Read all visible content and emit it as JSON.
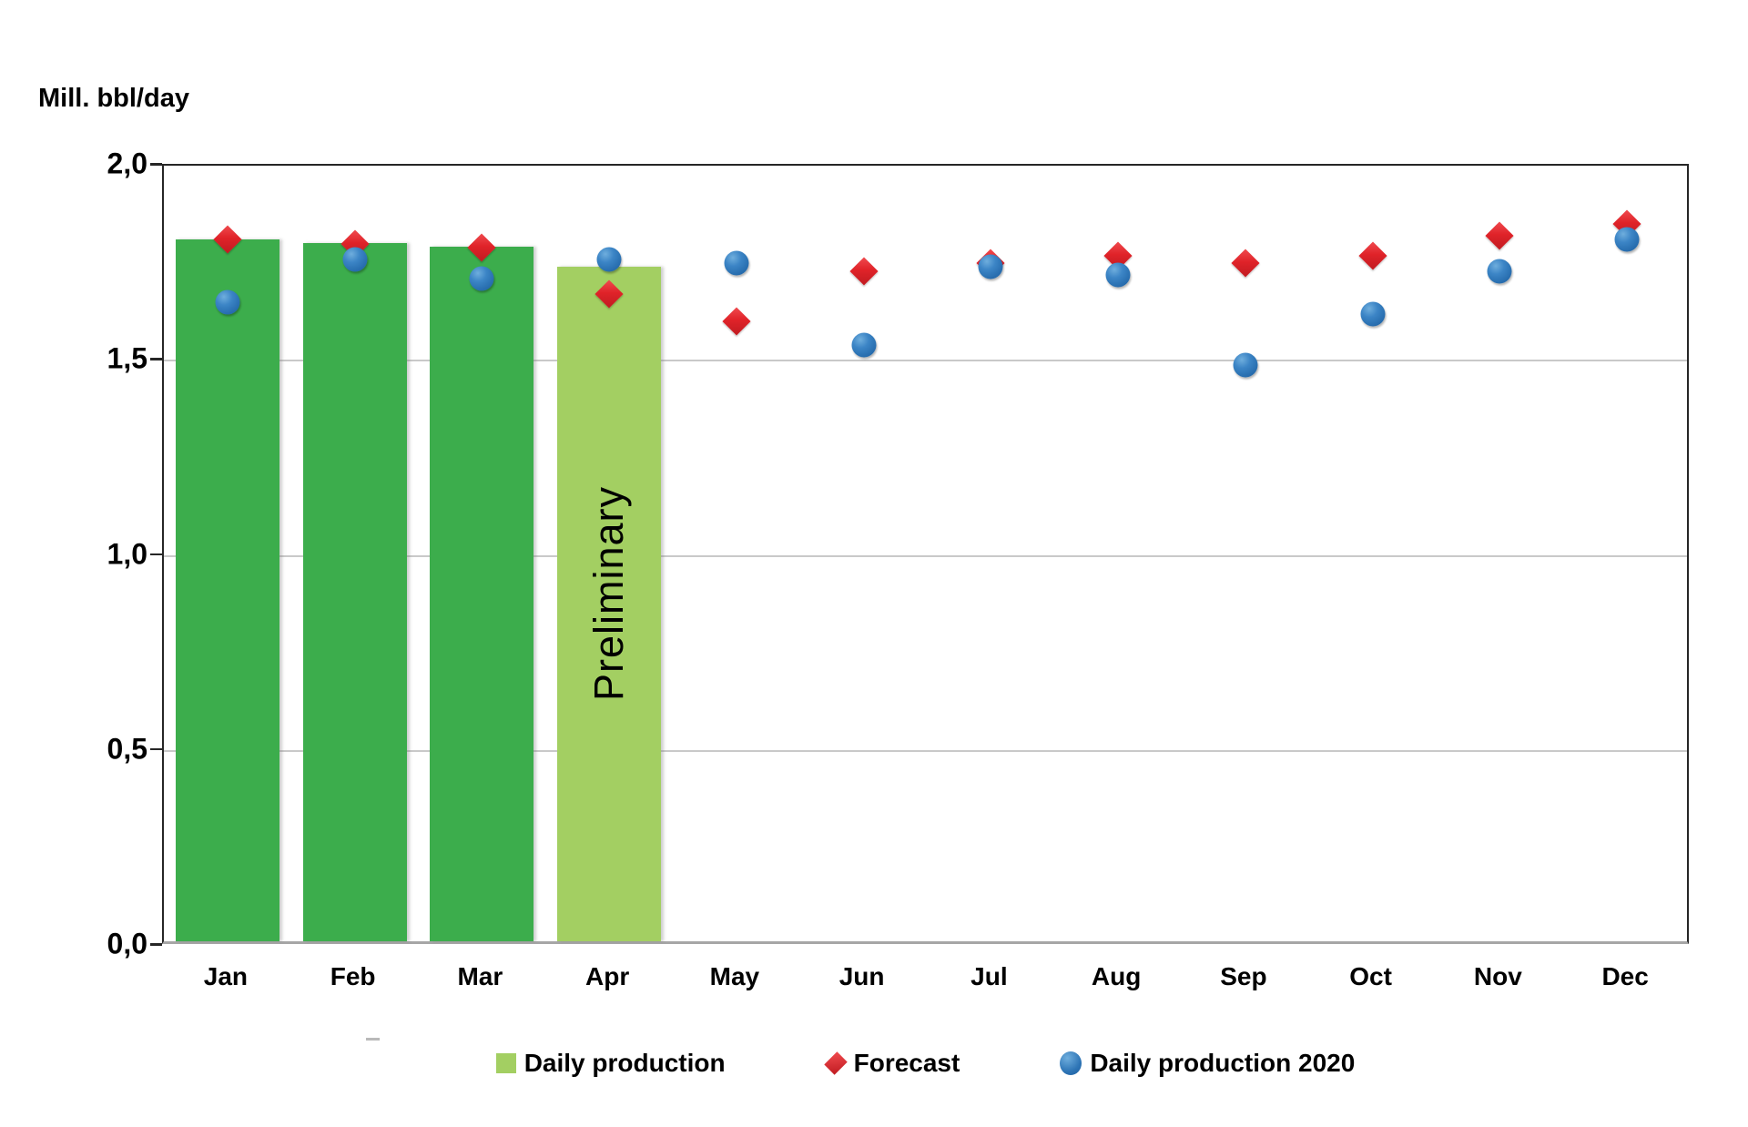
{
  "chart_data": {
    "type": "bar",
    "subtype": "combo-bar-scatter",
    "axis_title": "Mill. bbl/day",
    "categories": [
      "Jan",
      "Feb",
      "Mar",
      "Apr",
      "May",
      "Jun",
      "Jul",
      "Aug",
      "Sep",
      "Oct",
      "Nov",
      "Dec"
    ],
    "series": [
      {
        "name": "Daily production",
        "type": "bar",
        "marker": "square",
        "color": "#3CAD4C",
        "preliminary_color": "#A3CF62",
        "preliminary_index": 3,
        "preliminary_label": "Preliminary",
        "values": [
          1.8,
          1.79,
          1.78,
          1.73,
          null,
          null,
          null,
          null,
          null,
          null,
          null,
          null
        ]
      },
      {
        "name": "Forecast",
        "type": "scatter",
        "marker": "diamond",
        "color": "#E02329",
        "values": [
          1.81,
          1.8,
          1.79,
          1.67,
          1.6,
          1.73,
          1.75,
          1.77,
          1.75,
          1.77,
          1.82,
          1.85
        ]
      },
      {
        "name": "Daily production 2020",
        "type": "scatter",
        "marker": "circle",
        "color": "#2E75B6",
        "values": [
          1.65,
          1.76,
          1.71,
          1.76,
          1.75,
          1.54,
          1.74,
          1.72,
          1.49,
          1.62,
          1.73,
          1.81
        ]
      }
    ],
    "y_axis": {
      "min": 0.0,
      "max": 2.0,
      "tick_values": [
        2.0,
        1.5,
        1.0,
        0.5,
        0.0
      ],
      "tick_labels": [
        "2,0",
        "1,5",
        "1,0",
        "0,5",
        "0,0"
      ],
      "gridlines": [
        1.5,
        1.0,
        0.5
      ],
      "grid_on": true
    },
    "legend": {
      "position": "bottom",
      "entries": [
        "Daily production",
        "Forecast",
        "Daily production 2020"
      ]
    }
  }
}
